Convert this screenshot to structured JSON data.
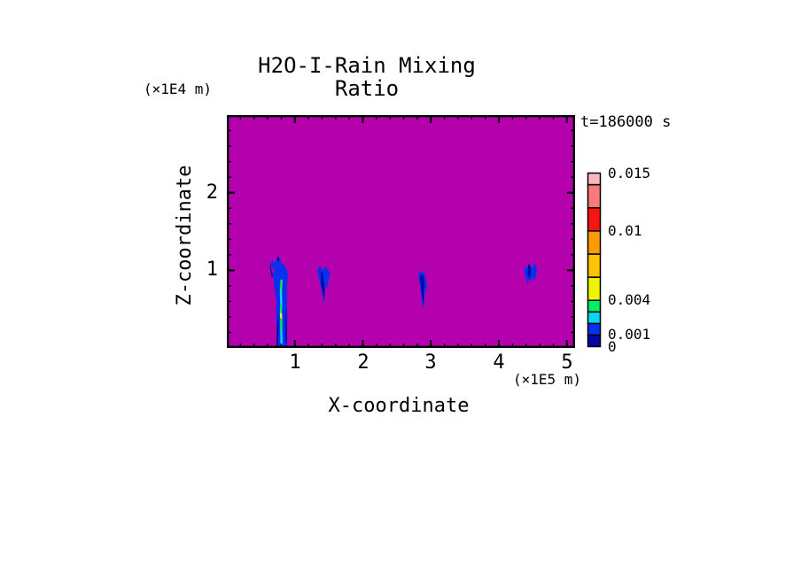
{
  "labels": {
    "title": "H2O-I-Rain Mixing Ratio",
    "z_unit": "(×1E4 m)",
    "x_unit": "(×1E5 m)",
    "time": "t=186000 s",
    "x_axis": "X-coordinate",
    "z_axis": "Z-coordinate"
  },
  "palette": {
    "page": "#ffffff",
    "frame": "#000000",
    "text": "#000000",
    "background": "#b500ae",
    "navy": "#0408a6",
    "blue": "#0a30ee",
    "cyan": "#04d8f4",
    "green": "#02ee66",
    "yellow": "#eef402",
    "gold": "#fcc402",
    "orange": "#fa9c06",
    "red": "#f81410",
    "salmon": "#fa7a7a",
    "pink": "#fbb8bc"
  },
  "chart_data": {
    "type": "heatmap",
    "title": "H2O-I-Rain Mixing Ratio",
    "xlabel": "X-coordinate",
    "ylabel": "Z-coordinate",
    "x_unit": "(×1E5 m)",
    "z_unit": "(×1E4 m)",
    "time_annotation": "t=186000 s",
    "xlim": [
      0,
      5.12
    ],
    "zlim": [
      0,
      3.0
    ],
    "x_major_ticks": [
      1,
      2,
      3,
      4,
      5
    ],
    "z_major_ticks": [
      1,
      2
    ],
    "minor_tick_step": 0.2,
    "grid": false,
    "legend_position": "right-colorbar",
    "field_background_value": "below lowest contour (no rain)",
    "levels": [
      0,
      0.001,
      0.002,
      0.003,
      0.004,
      0.006,
      0.008,
      0.01,
      0.012,
      0.014,
      0.015
    ],
    "level_colors": [
      "navy",
      "blue",
      "cyan",
      "green",
      "yellow",
      "gold",
      "orange",
      "red",
      "salmon",
      "pink"
    ],
    "colorbar_labels": [
      {
        "value": 0.015,
        "text": "0.015"
      },
      {
        "value": 0.01,
        "text": "0.01"
      },
      {
        "value": 0.004,
        "text": "0.004"
      },
      {
        "value": 0.001,
        "text": "0.001"
      },
      {
        "value": 0,
        "text": "0"
      }
    ],
    "features": [
      {
        "name": "rain-cell-1",
        "x_range": [
          0.64,
          0.9
        ],
        "z_range": [
          0.0,
          1.19
        ],
        "peak_value_range": "0.004-0.006 (yellow core)",
        "shapes": [
          {
            "color": "blue",
            "points": [
              [
                0.7,
                1.02
              ],
              [
                0.655,
                1.04
              ],
              [
                0.64,
                1.09
              ],
              [
                0.67,
                1.12
              ],
              [
                0.7,
                1.1
              ],
              [
                0.73,
                1.13
              ],
              [
                0.745,
                1.19
              ],
              [
                0.78,
                1.16
              ],
              [
                0.8,
                1.1
              ],
              [
                0.84,
                1.07
              ],
              [
                0.88,
                1.02
              ],
              [
                0.9,
                0.94
              ],
              [
                0.885,
                0.8
              ],
              [
                0.885,
                0.6
              ],
              [
                0.89,
                0.4
              ],
              [
                0.885,
                0.15
              ],
              [
                0.89,
                0.0
              ],
              [
                0.73,
                0.0
              ],
              [
                0.735,
                0.2
              ],
              [
                0.72,
                0.45
              ],
              [
                0.73,
                0.6
              ],
              [
                0.695,
                0.8
              ],
              [
                0.68,
                0.95
              ]
            ]
          },
          {
            "color": "navy",
            "points": [
              [
                0.64,
                1.09
              ],
              [
                0.655,
                1.02
              ],
              [
                0.68,
                0.93
              ],
              [
                0.66,
                0.9
              ],
              [
                0.645,
                0.98
              ],
              [
                0.635,
                1.05
              ]
            ]
          },
          {
            "color": "navy",
            "points": [
              [
                0.73,
                0.0
              ],
              [
                0.735,
                0.25
              ],
              [
                0.755,
                0.45
              ],
              [
                0.76,
                0.25
              ],
              [
                0.75,
                0.0
              ]
            ]
          },
          {
            "color": "navy",
            "points": [
              [
                0.875,
                0.55
              ],
              [
                0.88,
                0.35
              ],
              [
                0.885,
                0.1
              ],
              [
                0.87,
                0.0
              ],
              [
                0.86,
                0.2
              ],
              [
                0.865,
                0.4
              ]
            ]
          },
          {
            "color": "navy",
            "points": [
              [
                0.74,
                1.14
              ],
              [
                0.75,
                1.19
              ],
              [
                0.77,
                1.15
              ],
              [
                0.76,
                1.1
              ]
            ]
          }
        ],
        "core": [
          {
            "color": "green",
            "pts": [
              [
                0.805,
                0.88
              ],
              [
                0.795,
                0.72
              ]
            ]
          },
          {
            "color": "cyan",
            "pts": [
              [
                0.795,
                0.72
              ],
              [
                0.8,
                0.55
              ]
            ]
          },
          {
            "color": "green",
            "pts": [
              [
                0.8,
                0.55
              ],
              [
                0.795,
                0.45
              ]
            ]
          },
          {
            "color": "yellow",
            "pts": [
              [
                0.795,
                0.45
              ],
              [
                0.8,
                0.38
              ]
            ]
          },
          {
            "color": "green",
            "pts": [
              [
                0.8,
                0.38
              ],
              [
                0.8,
                0.22
              ]
            ]
          },
          {
            "color": "cyan",
            "pts": [
              [
                0.8,
                0.22
              ],
              [
                0.805,
                0.04
              ]
            ]
          }
        ]
      },
      {
        "name": "rain-cell-2",
        "x_range": [
          1.33,
          1.52
        ],
        "z_range": [
          0.58,
          1.06
        ],
        "shapes": [
          {
            "color": "blue",
            "points": [
              [
                1.36,
                1.06
              ],
              [
                1.33,
                1.0
              ],
              [
                1.345,
                0.92
              ],
              [
                1.37,
                0.83
              ],
              [
                1.4,
                0.7
              ],
              [
                1.425,
                0.58
              ],
              [
                1.445,
                0.68
              ],
              [
                1.44,
                0.8
              ],
              [
                1.47,
                0.76
              ],
              [
                1.5,
                0.88
              ],
              [
                1.52,
                0.97
              ],
              [
                1.48,
                1.02
              ],
              [
                1.44,
                1.05
              ],
              [
                1.41,
                0.99
              ],
              [
                1.385,
                1.04
              ]
            ]
          },
          {
            "color": "navy",
            "points": [
              [
                1.39,
                0.98
              ],
              [
                1.38,
                0.86
              ],
              [
                1.41,
                0.72
              ],
              [
                1.43,
                0.62
              ],
              [
                1.44,
                0.74
              ],
              [
                1.425,
                0.88
              ],
              [
                1.41,
                0.97
              ]
            ]
          }
        ],
        "core": []
      },
      {
        "name": "rain-cell-3",
        "x_range": [
          2.81,
          2.95
        ],
        "z_range": [
          0.5,
          1.0
        ],
        "shapes": [
          {
            "color": "blue",
            "points": [
              [
                2.83,
                1.0
              ],
              [
                2.815,
                0.92
              ],
              [
                2.84,
                0.8
              ],
              [
                2.86,
                0.65
              ],
              [
                2.885,
                0.5
              ],
              [
                2.91,
                0.6
              ],
              [
                2.905,
                0.75
              ],
              [
                2.93,
                0.7
              ],
              [
                2.945,
                0.82
              ],
              [
                2.92,
                0.92
              ],
              [
                2.89,
                1.0
              ],
              [
                2.86,
                0.95
              ]
            ]
          },
          {
            "color": "navy",
            "points": [
              [
                2.85,
                0.97
              ],
              [
                2.84,
                0.88
              ],
              [
                2.865,
                0.72
              ],
              [
                2.885,
                0.55
              ],
              [
                2.9,
                0.67
              ],
              [
                2.895,
                0.8
              ],
              [
                2.91,
                0.76
              ],
              [
                2.905,
                0.88
              ],
              [
                2.88,
                0.95
              ],
              [
                2.86,
                0.92
              ]
            ]
          }
        ],
        "core": []
      },
      {
        "name": "rain-cell-4",
        "x_range": [
          4.37,
          4.56
        ],
        "z_range": [
          0.8,
          1.1
        ],
        "shapes": [
          {
            "color": "blue",
            "points": [
              [
                4.38,
                1.06
              ],
              [
                4.37,
                0.98
              ],
              [
                4.4,
                0.9
              ],
              [
                4.425,
                0.82
              ],
              [
                4.445,
                0.9
              ],
              [
                4.465,
                0.84
              ],
              [
                4.49,
                0.92
              ],
              [
                4.52,
                0.86
              ],
              [
                4.55,
                0.94
              ],
              [
                4.56,
                1.04
              ],
              [
                4.52,
                1.09
              ],
              [
                4.48,
                1.02
              ],
              [
                4.44,
                1.1
              ],
              [
                4.41,
                1.03
              ]
            ]
          },
          {
            "color": "navy",
            "points": [
              [
                4.43,
                1.05
              ],
              [
                4.42,
                0.96
              ],
              [
                4.45,
                0.89
              ],
              [
                4.47,
                0.98
              ],
              [
                4.465,
                1.06
              ],
              [
                4.44,
                1.08
              ]
            ]
          }
        ],
        "core": []
      }
    ]
  }
}
